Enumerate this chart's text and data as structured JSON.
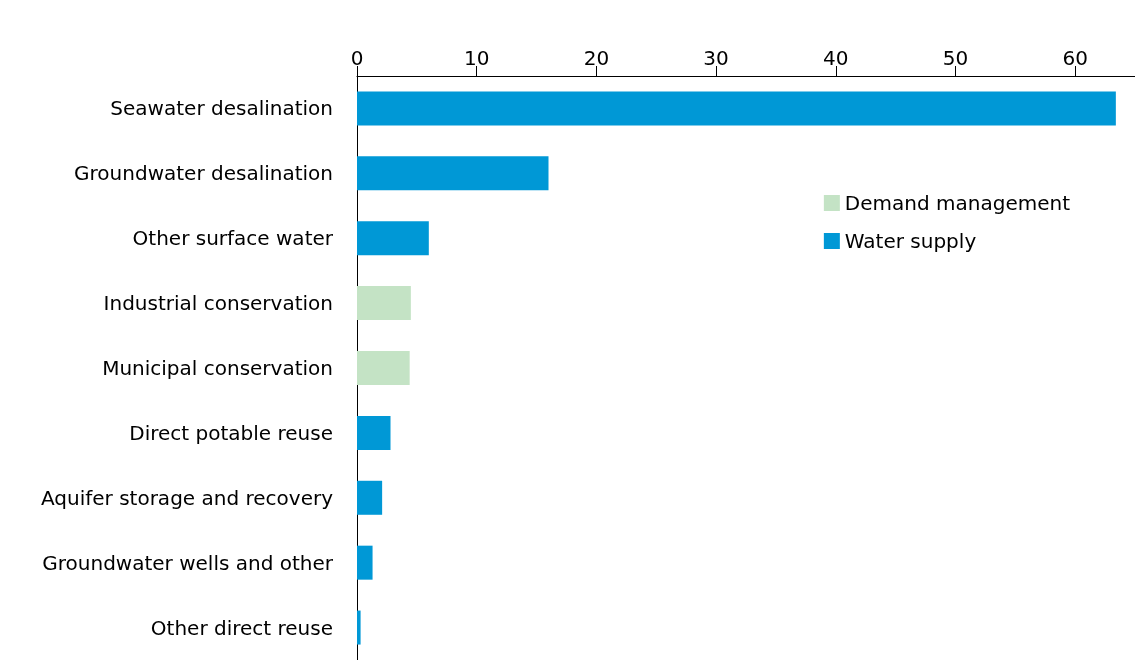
{
  "chart_data": {
    "type": "bar",
    "orientation": "horizontal",
    "categories": [
      "Seawater desalination",
      "Groundwater desalination",
      "Other surface water",
      "Industrial conservation",
      "Municipal conservation",
      "Direct potable reuse",
      "Aquifer storage and recovery",
      "Groundwater wells and other",
      "Other direct reuse"
    ],
    "series": [
      {
        "name": "Demand management",
        "color": "#c4e3c5",
        "values": [
          null,
          null,
          null,
          4.5,
          4.4,
          null,
          null,
          null,
          null
        ]
      },
      {
        "name": "Water supply",
        "color": "#0098d6",
        "values": [
          63.4,
          16.0,
          6.0,
          null,
          null,
          2.8,
          2.1,
          1.3,
          0.3
        ]
      }
    ],
    "xlim": [
      0,
      65
    ],
    "xticks": [
      0,
      10,
      20,
      30,
      40,
      50,
      60
    ],
    "grid": false,
    "legend": "right"
  }
}
